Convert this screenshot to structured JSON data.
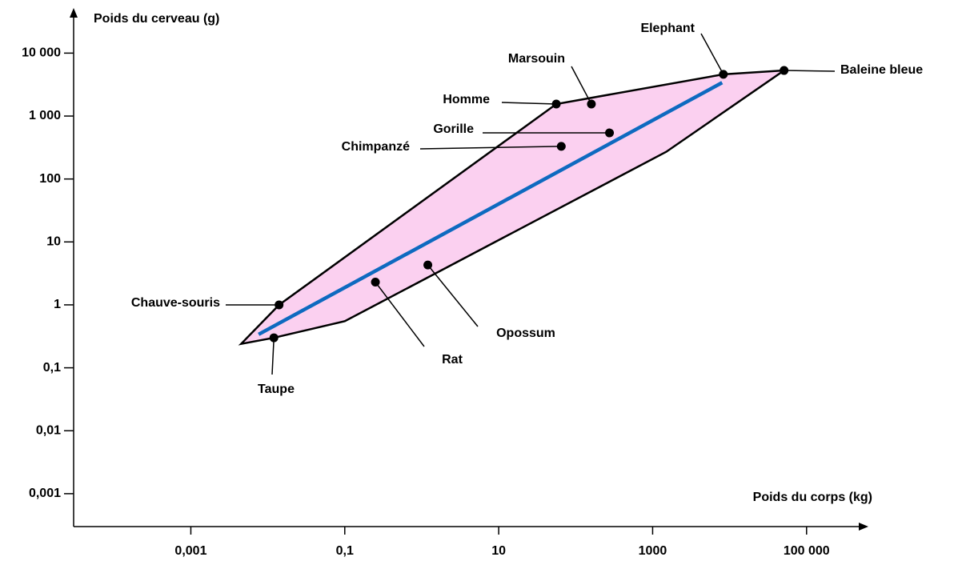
{
  "chart_data": {
    "type": "scatter",
    "y_label": "Poids du cerveau (g)",
    "x_label": "Poids du corps (kg)",
    "xlog": true,
    "ylog": true,
    "grid": false,
    "xlim": [
      3e-05,
      500000
    ],
    "ylim": [
      0.0003,
      45000
    ],
    "xticks": [
      {
        "value": 0.001,
        "label": "0,001"
      },
      {
        "value": 0.1,
        "label": "0,1"
      },
      10,
      1000,
      {
        "value": 100000,
        "label": "100 000"
      }
    ],
    "yticks": [
      {
        "value": 0.001,
        "label": "0,001"
      },
      {
        "value": 0.01,
        "label": "0,01"
      },
      {
        "value": 0.1,
        "label": "0,1"
      },
      1,
      10,
      100,
      {
        "value": 1000,
        "label": "1 000"
      },
      {
        "value": 10000,
        "label": "10 000"
      }
    ],
    "point_color": "#000000",
    "labels": [
      "Chauve-souris",
      "Taupe",
      "Rat",
      "Opossum",
      "Chimpanzé",
      "Gorille",
      "Homme",
      "Marsouin",
      "Elephant",
      "Baleine bleue"
    ],
    "x": [
      0.014,
      0.012,
      0.25,
      1.2,
      65,
      275,
      56,
      160,
      8300,
      51000
    ],
    "y": [
      1,
      0.3,
      2.3,
      4.3,
      330,
      540,
      1550,
      1550,
      4600,
      5300
    ],
    "envelope": {
      "color": "#fbd0f0",
      "x": [
        0.0045,
        0.014,
        56,
        8300,
        51000,
        1500,
        0.1,
        0.012
      ],
      "y": [
        0.24,
        1,
        1550,
        4600,
        5300,
        270,
        0.55,
        0.3
      ]
    },
    "trend": {
      "color": "#0e6ac0",
      "x": [
        0.0076,
        8000
      ],
      "y": [
        0.34,
        3400
      ]
    }
  }
}
